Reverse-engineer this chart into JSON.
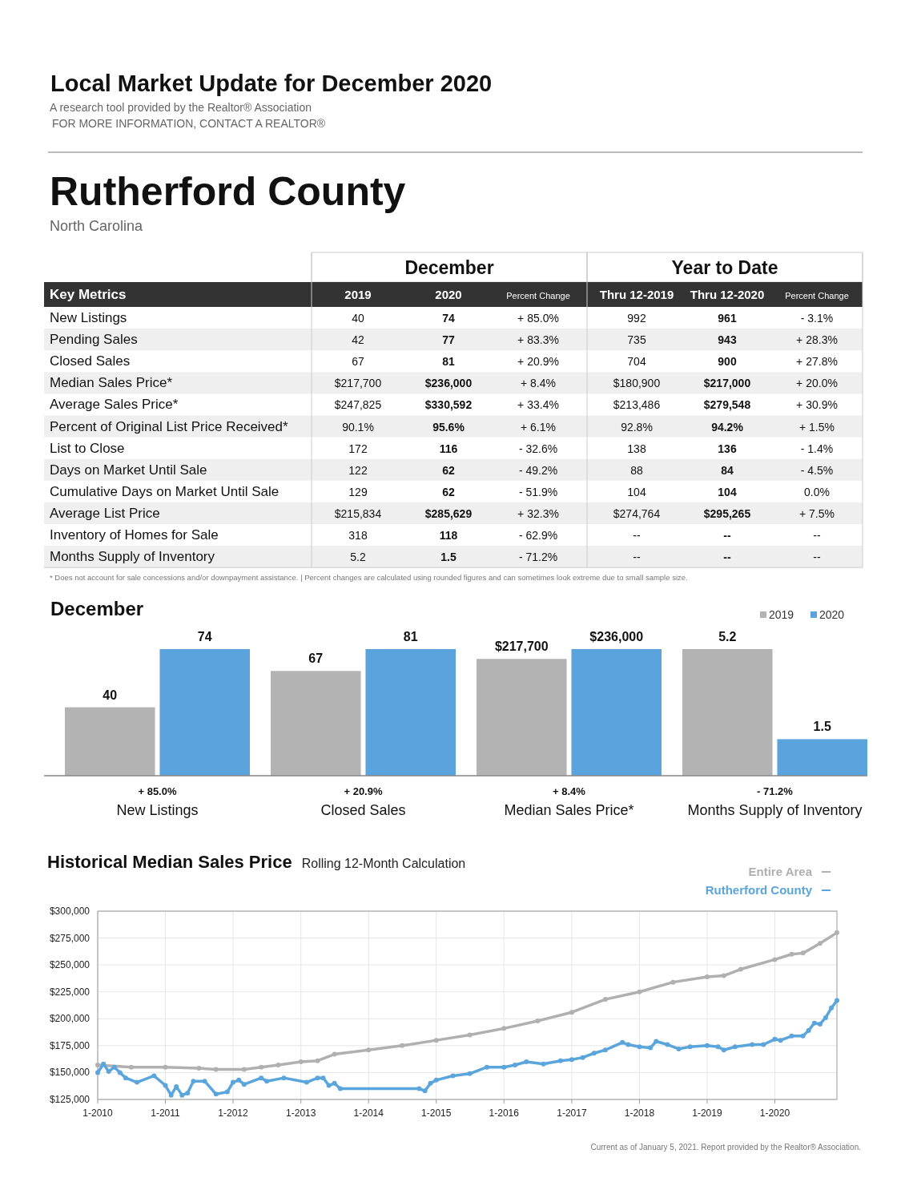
{
  "chart_data": [
    {
      "type": "other",
      "title": "Local Market Update for December 2020",
      "subtitle": "A research tool provided by the Realtor® Association",
      "annotations": [
        "FOR MORE INFORMATION, CONTACT A REALTOR®",
        "Rutherford County",
        "North Carolina",
        "December",
        "Year to Date",
        "Key Metrics",
        "2019",
        "2020",
        "Percent Change",
        "Thru 12-2019",
        "Thru 12-2020",
        "Percent Change",
        "New Listings",
        "40",
        "74",
        "+ 85.0%",
        "992",
        "961",
        "- 3.1%",
        "Pending Sales",
        "42",
        "77",
        "+ 83.3%",
        "735",
        "943",
        "+ 28.3%",
        "Closed Sales",
        "67",
        "81",
        "+ 20.9%",
        "704",
        "900",
        "+ 27.8%",
        "Median Sales Price*",
        "$217,700",
        "$236,000",
        "+ 8.4%",
        "$180,900",
        "$217,000",
        "+ 20.0%",
        "Average Sales Price*",
        "$247,825",
        "$330,592",
        "+ 33.4%",
        "$213,486",
        "$279,548",
        "+ 30.9%",
        "Percent of Original List Price Received*",
        "90.1%",
        "95.6%",
        "+ 6.1%",
        "92.8%",
        "94.2%",
        "+ 1.5%",
        "List to Close",
        "172",
        "116",
        "- 32.6%",
        "138",
        "136",
        "- 1.4%",
        "Days on Market Until Sale",
        "122",
        "62",
        "- 49.2%",
        "88",
        "84",
        "- 4.5%",
        "Cumulative Days on Market Until Sale",
        "129",
        "62",
        "- 51.9%",
        "104",
        "104",
        "0.0%",
        "Average List Price",
        "$215,834",
        "$285,629",
        "+ 32.3%",
        "$274,764",
        "$295,265",
        "+ 7.5%",
        "Inventory of Homes for Sale",
        "318",
        "118",
        "- 62.9%",
        "--",
        "--",
        "--",
        "Months Supply of Inventory",
        "5.2",
        "1.5",
        "- 71.2%",
        "--",
        "--",
        "--",
        "* Does not account for sale concessions and/or downpayment assistance.  |  Percent changes are calculated using rounded figures and can sometimes look extreme due to small sample size."
      ]
    },
    {
      "type": "bar",
      "title": "December",
      "categories": [
        null
      ],
      "xlabel": "New Listings",
      "series": [
        {
          "color": "#b3b3b3",
          "values": [
            40
          ]
        },
        {
          "color": "#5ba3dc",
          "values": [
            74
          ]
        }
      ],
      "data_labels": true,
      "annotations": [
        "+ 85.0%"
      ]
    },
    {
      "type": "bar",
      "categories": [
        null
      ],
      "xlabel": "Closed Sales",
      "series": [
        {
          "color": "#b3b3b3",
          "values": [
            67
          ]
        },
        {
          "color": "#5ba3dc",
          "values": [
            81
          ]
        }
      ],
      "data_labels": true,
      "annotations": [
        "+ 20.9%"
      ]
    },
    {
      "type": "bar",
      "categories": [
        null
      ],
      "xlabel": "Median Sales Price*",
      "series": [
        {
          "color": "#b3b3b3",
          "values": [
            217700
          ],
          "value_labels": [
            "$217,700"
          ]
        },
        {
          "color": "#5ba3dc",
          "values": [
            236000
          ],
          "value_labels": [
            "$236,000"
          ]
        }
      ],
      "annotations": [
        "+ 8.4%"
      ]
    },
    {
      "type": "bar",
      "categories": [
        null
      ],
      "xlabel": "Months Supply of Inventory",
      "series": [
        {
          "name": "2019",
          "color": "#b3b3b3",
          "values": [
            5.2
          ]
        },
        {
          "name": "2020",
          "color": "#5ba3dc",
          "values": [
            1.5
          ]
        }
      ],
      "data_labels": true,
      "legend": "top right",
      "annotations": [
        "- 71.2%"
      ]
    },
    {
      "type": "line",
      "title": "Historical Median Sales Price",
      "subtitle": "Rolling 12-Month Calculation",
      "xlim": [
        "2010-01",
        "2020-12"
      ],
      "xticks": [
        {
          "value": "2010-01",
          "label": "1-2010"
        },
        {
          "value": "2011-01",
          "label": "1-2011"
        },
        {
          "value": "2012-01",
          "label": "1-2012"
        },
        {
          "value": "2013-01",
          "label": "1-2013"
        },
        {
          "value": "2014-01",
          "label": "1-2014"
        },
        {
          "value": "2015-01",
          "label": "1-2015"
        },
        {
          "value": "2016-01",
          "label": "1-2016"
        },
        {
          "value": "2017-01",
          "label": "1-2017"
        },
        {
          "value": "2018-01",
          "label": "1-2018"
        },
        {
          "value": "2019-01",
          "label": "1-2019"
        },
        {
          "value": "2020-01",
          "label": "1-2020"
        }
      ],
      "ylim": [
        125000,
        300000
      ],
      "yticks": [
        {
          "value": 125000,
          "label": "$125,000"
        },
        {
          "value": 150000,
          "label": "$150,000"
        },
        {
          "value": 175000,
          "label": "$175,000"
        },
        {
          "value": 200000,
          "label": "$200,000"
        },
        {
          "value": 225000,
          "label": "$225,000"
        },
        {
          "value": 250000,
          "label": "$250,000"
        },
        {
          "value": 275000,
          "label": "$275,000"
        },
        {
          "value": 300000,
          "label": "$300,000"
        }
      ],
      "grid": true,
      "legend": "top right",
      "marker": "circle",
      "line_style": "solid",
      "series": [
        {
          "name": "Entire Area",
          "color": "#b0b0b0",
          "x": [
            "2010-01",
            "2010-07",
            "2011-01",
            "2011-07",
            "2011-10",
            "2012-03",
            "2012-06",
            "2012-09",
            "2013-01",
            "2013-04",
            "2013-07",
            "2014-01",
            "2014-07",
            "2015-01",
            "2015-07",
            "2016-01",
            "2016-07",
            "2017-01",
            "2017-07",
            "2018-01",
            "2018-07",
            "2019-01",
            "2019-04",
            "2019-07",
            "2020-01",
            "2020-04",
            "2020-06",
            "2020-09",
            "2020-12"
          ],
          "values": [
            157000,
            155000,
            155000,
            154000,
            153000,
            153000,
            155000,
            157000,
            160000,
            161000,
            167000,
            171000,
            175000,
            180000,
            185000,
            191000,
            198000,
            206000,
            218000,
            225000,
            234000,
            239000,
            240000,
            246000,
            255000,
            260000,
            261000,
            270000,
            280000
          ]
        },
        {
          "name": "Rutherford County",
          "color": "#5aa5dc",
          "x": [
            "2010-01",
            "2010-02",
            "2010-03",
            "2010-04",
            "2010-05",
            "2010-06",
            "2010-08",
            "2010-11",
            "2011-01",
            "2011-02",
            "2011-03",
            "2011-04",
            "2011-05",
            "2011-06",
            "2011-08",
            "2011-10",
            "2011-12",
            "2012-01",
            "2012-02",
            "2012-03",
            "2012-06",
            "2012-07",
            "2012-10",
            "2013-02",
            "2013-04",
            "2013-05",
            "2013-06",
            "2013-07",
            "2013-08",
            "2014-10",
            "2014-11",
            "2014-12",
            "2015-01",
            "2015-04",
            "2015-07",
            "2015-10",
            "2016-01",
            "2016-03",
            "2016-05",
            "2016-08",
            "2016-11",
            "2017-01",
            "2017-03",
            "2017-05",
            "2017-07",
            "2017-10",
            "2017-11",
            "2018-01",
            "2018-03",
            "2018-04",
            "2018-06",
            "2018-08",
            "2018-10",
            "2019-01",
            "2019-03",
            "2019-04",
            "2019-06",
            "2019-09",
            "2019-11",
            "2020-01",
            "2020-02",
            "2020-04",
            "2020-06",
            "2020-07",
            "2020-08",
            "2020-09",
            "2020-10",
            "2020-11",
            "2020-12"
          ],
          "values": [
            150000,
            158000,
            151000,
            155000,
            150000,
            145000,
            141000,
            147000,
            138000,
            129000,
            137000,
            129000,
            131000,
            142000,
            142000,
            130000,
            132000,
            141000,
            143000,
            139000,
            145000,
            142000,
            145000,
            141000,
            145000,
            145000,
            138000,
            140000,
            135000,
            135000,
            133000,
            140000,
            143000,
            147000,
            149000,
            155000,
            155000,
            157000,
            160000,
            158000,
            161000,
            162000,
            164000,
            168000,
            171000,
            178000,
            176000,
            174000,
            173000,
            179000,
            176000,
            172000,
            174000,
            175000,
            174000,
            171000,
            174000,
            176000,
            176000,
            181000,
            180000,
            184000,
            184000,
            189000,
            196000,
            195000,
            201000,
            210000,
            217000
          ]
        }
      ],
      "annotations": [
        "Current as of January 5, 2021. Report provided by the Realtor® Association."
      ]
    }
  ]
}
